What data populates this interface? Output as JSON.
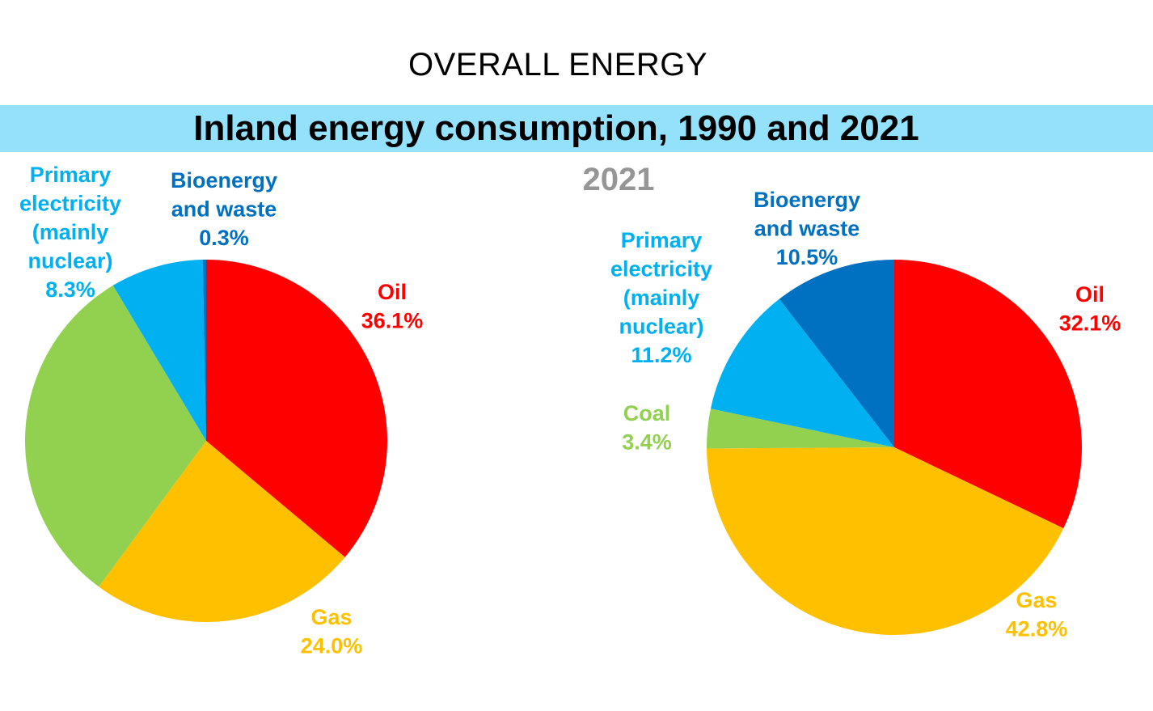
{
  "header": {
    "title": "OVERALL ENERGY",
    "banner_title": "Inland energy consumption, 1990 and 2021"
  },
  "colors": {
    "banner": "#93e1fb",
    "oil": "#ff0000",
    "gas": "#ffc000",
    "coal": "#92d050",
    "primary_electricity": "#00b0f0",
    "bioenergy": "#0070c0",
    "year_title": "#969696"
  },
  "chart_data": [
    {
      "type": "pie",
      "title": "",
      "start_angle_deg": 0,
      "direction": "clockwise",
      "slices": [
        {
          "label": "Oil",
          "value": 36.1,
          "value_label": "36.1%",
          "color": "#ff0000",
          "label_color": "#ff0000"
        },
        {
          "label": "Gas",
          "value": 24.0,
          "value_label": "24.0%",
          "color": "#ffc000",
          "label_color": "#ffc000"
        },
        {
          "label": "",
          "value": 31.3,
          "value_label": "",
          "color": "#92d050",
          "label_color": "#92d050"
        },
        {
          "label": "Primary electricity (mainly nuclear)",
          "label_lines": [
            "Primary",
            "electricity",
            "(mainly",
            "nuclear)"
          ],
          "value": 8.3,
          "value_label": "8.3%",
          "color": "#00b0f0",
          "label_color": "#00b0f0"
        },
        {
          "label": "Bioenergy and waste",
          "label_lines": [
            "Bioenergy",
            "and waste"
          ],
          "value": 0.3,
          "value_label": "0.3%",
          "color": "#0070c0",
          "label_color": "#0070c0"
        }
      ]
    },
    {
      "type": "pie",
      "title": "2021",
      "start_angle_deg": 0,
      "direction": "clockwise",
      "slices": [
        {
          "label": "Oil",
          "value": 32.1,
          "value_label": "32.1%",
          "color": "#ff0000",
          "label_color": "#ff0000"
        },
        {
          "label": "Gas",
          "value": 42.8,
          "value_label": "42.8%",
          "color": "#ffc000",
          "label_color": "#ffc000"
        },
        {
          "label": "Coal",
          "value": 3.4,
          "value_label": "3.4%",
          "color": "#92d050",
          "label_color": "#92d050"
        },
        {
          "label": "Primary electricity (mainly nuclear)",
          "label_lines": [
            "Primary",
            "electricity",
            "(mainly",
            "nuclear)"
          ],
          "value": 11.2,
          "value_label": "11.2%",
          "color": "#00b0f0",
          "label_color": "#00b0f0"
        },
        {
          "label": "Bioenergy and waste",
          "label_lines": [
            "Bioenergy",
            "and waste"
          ],
          "value": 10.5,
          "value_label": "10.5%",
          "color": "#0070c0",
          "label_color": "#0070c0"
        }
      ]
    }
  ]
}
